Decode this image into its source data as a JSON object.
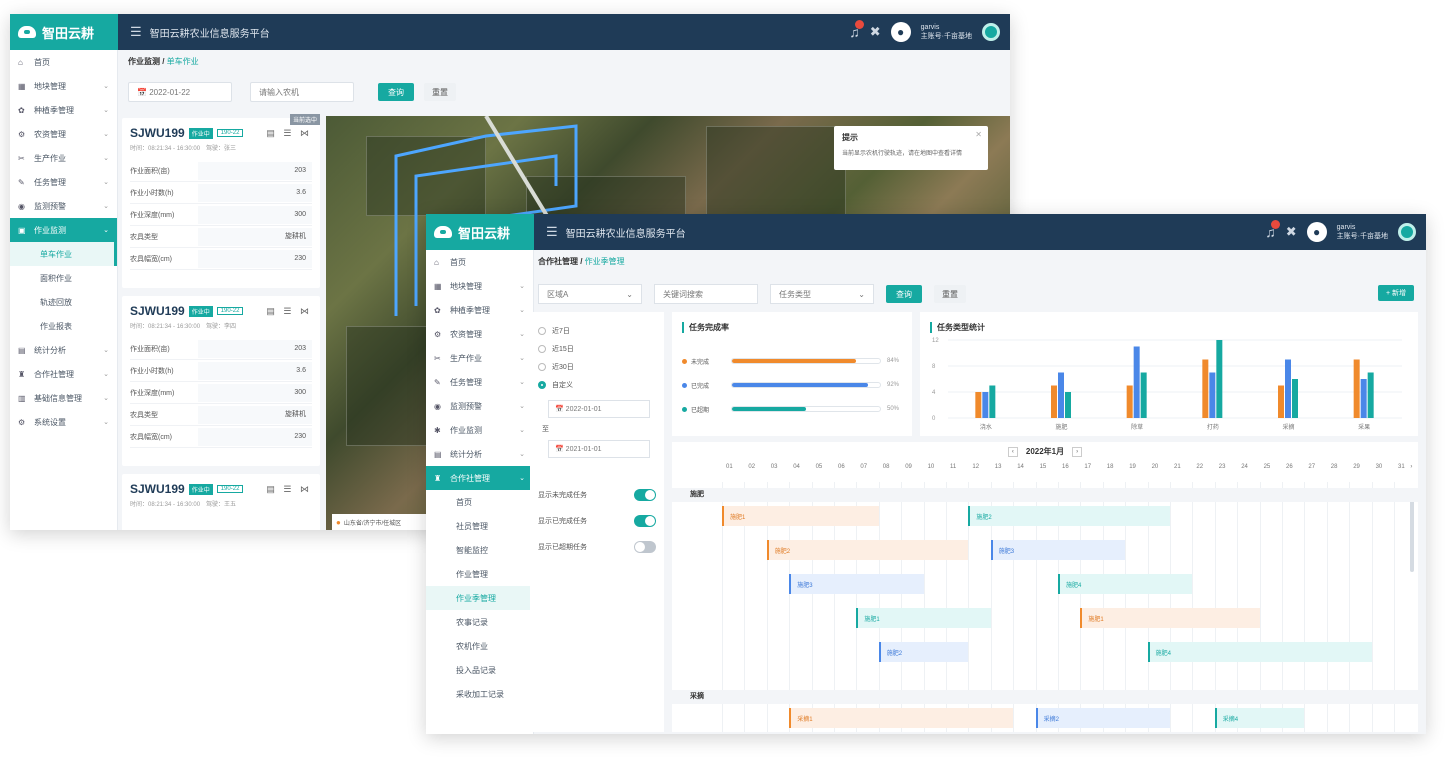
{
  "app": {
    "logo_text": "智田云耕",
    "platform_title": "智田云耕农业信息服务平台",
    "user_line1": "garvis",
    "user_line2": "主账号·千亩基地"
  },
  "back_window": {
    "sidebar": [
      {
        "icon": "home-icon",
        "glyph": "⌂",
        "label": "首页",
        "arrow": false
      },
      {
        "icon": "land-icon",
        "glyph": "▦",
        "label": "地块管理",
        "arrow": true
      },
      {
        "icon": "season-icon",
        "glyph": "✿",
        "label": "种植季管理",
        "arrow": true
      },
      {
        "icon": "machine-icon",
        "glyph": "⚙",
        "label": "农资管理",
        "arrow": true
      },
      {
        "icon": "produce-icon",
        "glyph": "✂",
        "label": "生产作业",
        "arrow": true
      },
      {
        "icon": "task-icon",
        "glyph": "✎",
        "label": "任务管理",
        "arrow": true
      },
      {
        "icon": "monitor-icon",
        "glyph": "◉",
        "label": "监测预警",
        "arrow": true
      },
      {
        "icon": "work-icon",
        "glyph": "▣",
        "label": "作业监测",
        "arrow": true,
        "active": true
      },
      {
        "sub": true,
        "label": "单车作业",
        "current": true
      },
      {
        "sub": true,
        "label": "面积作业"
      },
      {
        "sub": true,
        "label": "轨迹回放"
      },
      {
        "sub": true,
        "label": "作业报表"
      },
      {
        "icon": "stats-icon",
        "glyph": "▤",
        "label": "统计分析",
        "arrow": true
      },
      {
        "icon": "coop-icon",
        "glyph": "♜",
        "label": "合作社管理",
        "arrow": true
      },
      {
        "icon": "info-icon",
        "glyph": "▥",
        "label": "基础信息管理",
        "arrow": true
      },
      {
        "icon": "settings-icon",
        "glyph": "⚙",
        "label": "系统设置",
        "arrow": true
      }
    ],
    "breadcrumb_root": "作业监测",
    "breadcrumb_current": "单车作业",
    "date_value": "2022-01-22",
    "search_placeholder": "请输入农机",
    "search_btn": "查询",
    "reset_btn": "重置",
    "cards": [
      {
        "title": "SJWU199",
        "tag1": "作业中",
        "tag2": "190-22",
        "corner": "当前选中",
        "meta": "时间：08:21:34 - 16:30:00　驾驶：张三",
        "rows": [
          {
            "k": "作业面积(亩)",
            "v": "203"
          },
          {
            "k": "作业小时数(h)",
            "v": "3.6"
          },
          {
            "k": "作业深度(mm)",
            "v": "300"
          },
          {
            "k": "农具类型",
            "v": "旋耕机"
          },
          {
            "k": "农具幅宽(cm)",
            "v": "230"
          }
        ]
      },
      {
        "title": "SJWU199",
        "tag1": "作业中",
        "tag2": "190-22",
        "meta": "时间：08:21:34 - 16:30:00　驾驶：李四",
        "rows": [
          {
            "k": "作业面积(亩)",
            "v": "203"
          },
          {
            "k": "作业小时数(h)",
            "v": "3.6"
          },
          {
            "k": "作业深度(mm)",
            "v": "300"
          },
          {
            "k": "农具类型",
            "v": "旋耕机"
          },
          {
            "k": "农具幅宽(cm)",
            "v": "230"
          }
        ]
      },
      {
        "title": "SJWU199",
        "tag1": "作业中",
        "tag2": "190-22",
        "meta": "时间：08:21:34 - 16:30:00　驾驶：王五",
        "rows": []
      }
    ],
    "hint_title": "提示",
    "hint_msg": "当前显示农机行驶轨迹，请在地图中查看详情",
    "location": "山东省/济宁市/任城区"
  },
  "front_window": {
    "sidebar": [
      {
        "icon": "home-icon",
        "glyph": "⌂",
        "label": "首页",
        "arrow": false
      },
      {
        "icon": "land-icon",
        "glyph": "▦",
        "label": "地块管理",
        "arrow": true
      },
      {
        "icon": "season-icon",
        "glyph": "✿",
        "label": "种植季管理",
        "arrow": true
      },
      {
        "icon": "machine-icon",
        "glyph": "⚙",
        "label": "农资管理",
        "arrow": true
      },
      {
        "icon": "produce-icon",
        "glyph": "✂",
        "label": "生产作业",
        "arrow": true
      },
      {
        "icon": "task-icon",
        "glyph": "✎",
        "label": "任务管理",
        "arrow": true
      },
      {
        "icon": "monitor-icon",
        "glyph": "◉",
        "label": "监测预警",
        "arrow": true
      },
      {
        "icon": "work-icon",
        "glyph": "✱",
        "label": "作业监测",
        "arrow": true
      },
      {
        "icon": "stats-icon",
        "glyph": "▤",
        "label": "统计分析",
        "arrow": true
      },
      {
        "icon": "coop-icon",
        "glyph": "♜",
        "label": "合作社管理",
        "arrow": true,
        "active": true
      },
      {
        "sub": true,
        "label": "首页"
      },
      {
        "sub": true,
        "label": "社员管理"
      },
      {
        "sub": true,
        "label": "智能监控"
      },
      {
        "sub": true,
        "label": "作业管理"
      },
      {
        "sub": true,
        "label": "作业季管理",
        "current": true
      },
      {
        "sub": true,
        "label": "农事记录"
      },
      {
        "sub": true,
        "label": "农机作业"
      },
      {
        "sub": true,
        "label": "投入品记录"
      },
      {
        "sub": true,
        "label": "采收加工记录"
      }
    ],
    "breadcrumb_root": "合作社管理",
    "breadcrumb_current": "作业季管理",
    "region_select": "区域A",
    "keyword_placeholder": "关键词搜索",
    "type_select": "任务类型",
    "search_btn": "查询",
    "reset_btn": "重置",
    "add_btn": "+ 新增",
    "range_options": [
      {
        "label": "近7日",
        "on": false
      },
      {
        "label": "近15日",
        "on": false
      },
      {
        "label": "近30日",
        "on": false
      },
      {
        "label": "自定义",
        "on": true
      }
    ],
    "date_from": "2022-01-01",
    "date_sep": "至",
    "date_to": "2021-01-01",
    "toggles": [
      {
        "label": "显示未完成任务",
        "on": true
      },
      {
        "label": "显示已完成任务",
        "on": true
      },
      {
        "label": "显示已超期任务",
        "on": false
      }
    ],
    "completion_title": "任务完成率",
    "completion": [
      {
        "label": "未完成",
        "value": 0.84,
        "pct": "84%",
        "color": "#f08a2c"
      },
      {
        "label": "已完成",
        "value": 0.92,
        "pct": "92%",
        "color": "#4a87e8"
      },
      {
        "label": "已超期",
        "value": 0.5,
        "pct": "50%",
        "color": "#16a9a1"
      }
    ],
    "gantt_month": "2022年1月",
    "gantt_groups": [
      {
        "label": "施肥",
        "bars": [
          {
            "label": "施肥1",
            "start": 1,
            "end": 7,
            "row": 0,
            "kind": "o"
          },
          {
            "label": "施肥2",
            "start": 12,
            "end": 20,
            "row": 0,
            "kind": "c"
          },
          {
            "label": "施肥2",
            "start": 3,
            "end": 11,
            "row": 1,
            "kind": "o"
          },
          {
            "label": "施肥3",
            "start": 13,
            "end": 18,
            "row": 1,
            "kind": "b"
          },
          {
            "label": "施肥3",
            "start": 4,
            "end": 9,
            "row": 2,
            "kind": "b"
          },
          {
            "label": "施肥4",
            "start": 16,
            "end": 21,
            "row": 2,
            "kind": "c"
          },
          {
            "label": "施肥1",
            "start": 7,
            "end": 12,
            "row": 3,
            "kind": "c"
          },
          {
            "label": "施肥1",
            "start": 17,
            "end": 24,
            "row": 3,
            "kind": "o"
          },
          {
            "label": "施肥2",
            "start": 8,
            "end": 11,
            "row": 4,
            "kind": "b"
          },
          {
            "label": "施肥4",
            "start": 20,
            "end": 29,
            "row": 4,
            "kind": "c"
          }
        ]
      },
      {
        "label": "采摘",
        "bars": [
          {
            "label": "采摘1",
            "start": 4,
            "end": 13,
            "row": 0,
            "kind": "o"
          },
          {
            "label": "采摘2",
            "start": 15,
            "end": 20,
            "row": 0,
            "kind": "b"
          },
          {
            "label": "采摘4",
            "start": 23,
            "end": 26,
            "row": 0,
            "kind": "c"
          }
        ]
      }
    ],
    "chart_data": {
      "type": "bar",
      "title": "任务类型统计",
      "categories": [
        "浇水",
        "施肥",
        "除草",
        "打药",
        "采摘",
        "采果"
      ],
      "series": [
        {
          "values": [
            4,
            5,
            5,
            9,
            5,
            9
          ],
          "color": "#f08a2c"
        },
        {
          "values": [
            4,
            7,
            11,
            7,
            9,
            6
          ],
          "color": "#4a87e8"
        },
        {
          "values": [
            5,
            4,
            7,
            12,
            6,
            7
          ],
          "color": "#16a9a1"
        }
      ],
      "ylim": [
        0,
        12
      ],
      "yticks": [
        0,
        4,
        8,
        12
      ]
    }
  }
}
